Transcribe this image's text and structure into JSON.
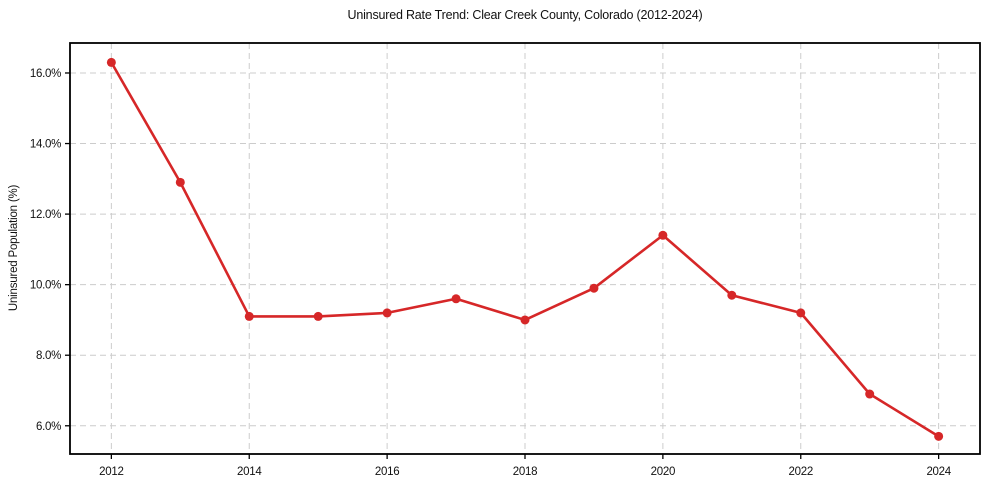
{
  "chart_data": {
    "type": "line",
    "title": "Uninsured Rate Trend: Clear Creek County, Colorado (2012-2024)",
    "xlabel": "",
    "ylabel": "Uninsured Population (%)",
    "x": [
      2012,
      2013,
      2014,
      2015,
      2016,
      2017,
      2018,
      2019,
      2020,
      2021,
      2022,
      2023,
      2024
    ],
    "values": [
      16.3,
      12.9,
      9.1,
      9.1,
      9.2,
      9.6,
      9.0,
      9.9,
      11.4,
      9.7,
      9.2,
      6.9,
      5.7
    ],
    "xticks": [
      2012,
      2014,
      2016,
      2018,
      2020,
      2022,
      2024
    ],
    "xtick_labels": [
      "2012",
      "2014",
      "2016",
      "2018",
      "2020",
      "2022",
      "2024"
    ],
    "yticks": [
      6,
      8,
      10,
      12,
      14,
      16
    ],
    "ytick_labels": [
      "6.0%",
      "8.0%",
      "10.0%",
      "12.0%",
      "14.0%",
      "16.0%"
    ],
    "xlim": [
      2011.4,
      2024.6
    ],
    "ylim": [
      5.2,
      16.85
    ],
    "grid": true,
    "grid_style": "dashed",
    "legend": false,
    "line_color": "#d62728",
    "grid_color": "#cccccc",
    "marker": "circle",
    "marker_radius": 4.5
  }
}
